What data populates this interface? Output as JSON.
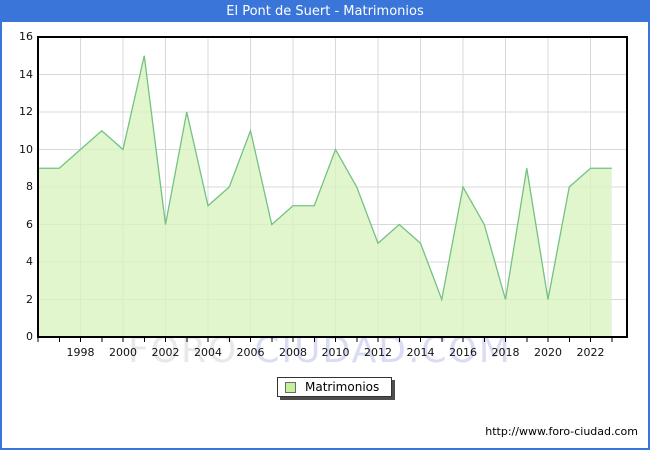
{
  "header": {
    "title": "El Pont de Suert - Matrimonios"
  },
  "legend": {
    "label": "Matrimonios"
  },
  "watermark": {
    "left": "FORO",
    "right": "CIUDAD.COM"
  },
  "footer": {
    "url": "http://www.foro-ciudad.com"
  },
  "colors": {
    "frame_blue": "#3a75d9",
    "area_fill": "#daf3bf",
    "line_green": "#74c283",
    "legend_swatch": "#c3f19e",
    "gridline": "#d8d8d8",
    "plot_border": "#000000",
    "watermark_gray": "#e8e8e8",
    "watermark_blue": "#d9dcf2"
  },
  "chart_data": {
    "type": "area",
    "title": "El Pont de Suert - Matrimonios",
    "xlabel": "",
    "ylabel": "",
    "ylim": [
      0,
      16
    ],
    "y_ticks": [
      0,
      2,
      4,
      6,
      8,
      10,
      12,
      14,
      16
    ],
    "x_tick_labels": [
      "1998",
      "2000",
      "2002",
      "2004",
      "2006",
      "2008",
      "2010",
      "2012",
      "2014",
      "2016",
      "2018",
      "2020",
      "2022"
    ],
    "grid": true,
    "legend_position": "bottom-center",
    "categories": [
      1996,
      1997,
      1998,
      1999,
      2000,
      2001,
      2002,
      2003,
      2004,
      2005,
      2006,
      2007,
      2008,
      2009,
      2010,
      2011,
      2012,
      2013,
      2014,
      2015,
      2016,
      2017,
      2018,
      2019,
      2020,
      2021,
      2022,
      2023
    ],
    "series": [
      {
        "name": "Matrimonios",
        "values": [
          9,
          9,
          10,
          11,
          10,
          15,
          6,
          12,
          7,
          8,
          11,
          6,
          7,
          7,
          10,
          8,
          5,
          6,
          5,
          2,
          8,
          6,
          2,
          9,
          2,
          8,
          9,
          9
        ]
      }
    ]
  }
}
